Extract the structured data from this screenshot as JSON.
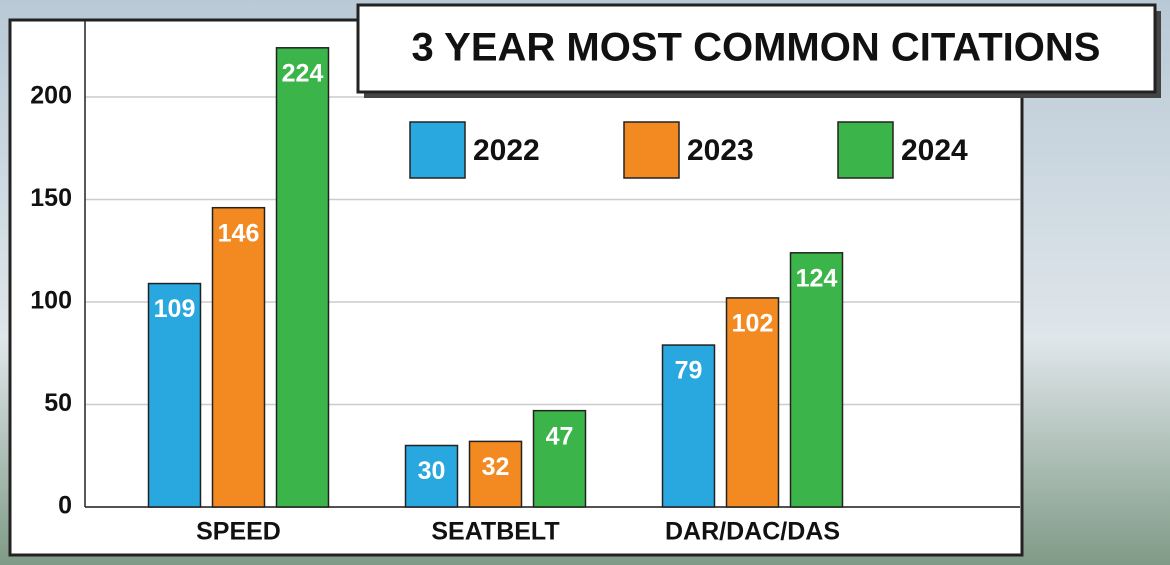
{
  "chart_data": {
    "type": "bar",
    "title": "3 YEAR MOST COMMON CITATIONS",
    "categories": [
      "SPEED",
      "SEATBELT",
      "DAR/DAC/DAS"
    ],
    "series": [
      {
        "name": "2022",
        "color": "#29a8e0",
        "values": [
          109,
          30,
          79
        ]
      },
      {
        "name": "2023",
        "color": "#f28a21",
        "values": [
          146,
          32,
          102
        ]
      },
      {
        "name": "2024",
        "color": "#3bb54a",
        "values": [
          224,
          47,
          124
        ]
      }
    ],
    "ylim": [
      0,
      240
    ],
    "yticks": [
      0,
      50,
      100,
      150,
      200
    ],
    "grid": true,
    "legend": "top"
  }
}
